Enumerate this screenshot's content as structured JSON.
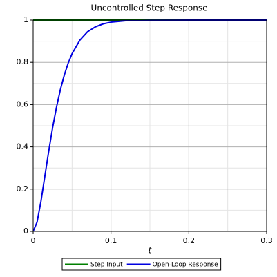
{
  "chart_data": {
    "type": "line",
    "title": "Uncontrolled Step Response",
    "x_label": "t",
    "x": [
      0,
      0.005,
      0.01,
      0.015,
      0.02,
      0.025,
      0.03,
      0.035,
      0.04,
      0.045,
      0.05,
      0.06,
      0.07,
      0.08,
      0.09,
      0.1,
      0.12,
      0.15,
      0.2,
      0.3
    ],
    "series": [
      {
        "name": "Step Input",
        "color": "#007f00",
        "values": [
          1,
          1,
          1,
          1,
          1,
          1,
          1,
          1,
          1,
          1,
          1,
          1,
          1,
          1,
          1,
          1,
          1,
          1,
          1,
          1
        ]
      },
      {
        "name": "Open-Loop Response",
        "color": "#0000e0",
        "values": [
          0,
          0.044,
          0.142,
          0.261,
          0.38,
          0.491,
          0.588,
          0.671,
          0.74,
          0.796,
          0.841,
          0.905,
          0.945,
          0.968,
          0.982,
          0.99,
          0.997,
          0.999,
          1,
          1
        ]
      }
    ],
    "xlim": [
      0,
      0.3
    ],
    "ylim": [
      0,
      1
    ],
    "xticks": [
      0,
      0.1,
      0.2,
      0.3
    ],
    "yticks": [
      0,
      0.2,
      0.4,
      0.6,
      0.8,
      1
    ],
    "xminorticks": [
      0.05,
      0.15,
      0.25
    ],
    "yminorticks": [
      0.1,
      0.3,
      0.5,
      0.7,
      0.9
    ],
    "grid": true,
    "legend": "bottom"
  }
}
